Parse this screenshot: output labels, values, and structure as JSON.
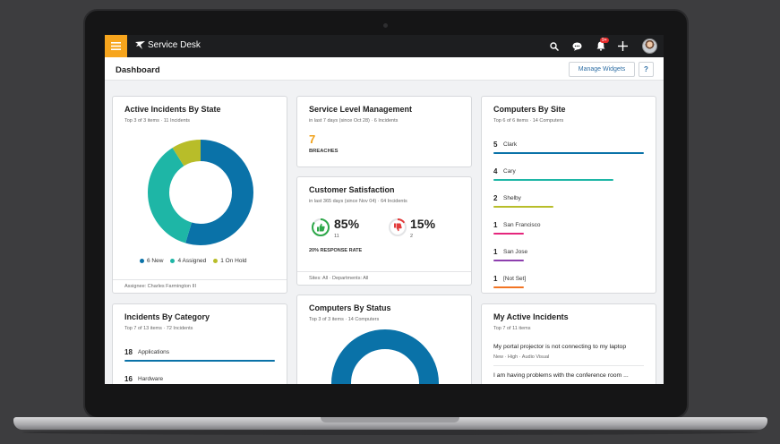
{
  "app": {
    "title": "Service Desk",
    "notification_count": "9+"
  },
  "icons": {
    "menu": "hamburger-icon",
    "logo": "bird-icon",
    "search": "search-icon",
    "chat": "chat-bubble-icon",
    "bell": "bell-icon",
    "add": "plus-icon",
    "thumbs_up": "thumbs-up-icon",
    "thumbs_down": "thumbs-down-icon"
  },
  "colors": {
    "accent": "#f7a51d",
    "topbar": "#1d1e20",
    "blue": "#0a72a8",
    "teal": "#1eb6a6",
    "olive": "#b8bd29",
    "magenta": "#e5267d",
    "purple": "#8d3fae",
    "orange": "#f27423",
    "breach": "#f0a017"
  },
  "header": {
    "title": "Dashboard",
    "manage_widgets": "Manage Widgets",
    "help": "?"
  },
  "active_incidents_by_state": {
    "title": "Active Incidents By State",
    "subtitle": "Top 3 of 3 items  ·  11 Incidents",
    "legend": [
      "6 New",
      "4 Assigned",
      "1 On Hold"
    ],
    "footer": "Assignee: Charles Farmington III"
  },
  "chart_data": {
    "type": "pie",
    "categories": [
      "New",
      "Assigned",
      "On Hold"
    ],
    "values": [
      6,
      4,
      1
    ],
    "colors": [
      "#0a72a8",
      "#1eb6a6",
      "#b8bd29"
    ],
    "title": "Active Incidents By State"
  },
  "service_level": {
    "title": "Service Level Management",
    "subtitle": "in last 7 days (since Oct 28)  ·  6 Incidents",
    "breaches_value": "7",
    "breaches_label": "BREACHES"
  },
  "customer_satisfaction": {
    "title": "Customer Satisfaction",
    "subtitle": "in last 365 days (since Nov 04)  ·  64 Incidents",
    "positive_pct": "85%",
    "positive_count": "11",
    "positive_fraction": 0.85,
    "negative_pct": "15%",
    "negative_count": "2",
    "negative_fraction": 0.15,
    "response_rate": "20% RESPONSE RATE",
    "footer": "Sites: All  ·  Departments: All"
  },
  "computers_by_site": {
    "title": "Computers By Site",
    "subtitle": "Top 6 of 6 items  ·  14 Computers",
    "items": [
      {
        "count": "5",
        "name": "Clark",
        "color": "#0a72a8",
        "fraction": 1.0
      },
      {
        "count": "4",
        "name": "Cary",
        "color": "#1eb6a6",
        "fraction": 0.8
      },
      {
        "count": "2",
        "name": "Shelby",
        "color": "#b8bd29",
        "fraction": 0.4
      },
      {
        "count": "1",
        "name": "San Francisco",
        "color": "#e5267d",
        "fraction": 0.2
      },
      {
        "count": "1",
        "name": "San Jose",
        "color": "#8d3fae",
        "fraction": 0.2
      },
      {
        "count": "1",
        "name": "[Not Set]",
        "color": "#f27423",
        "fraction": 0.2
      }
    ]
  },
  "incidents_by_category": {
    "title": "Incidents By Category",
    "subtitle": "Top 7 of 13 items  ·  72 Incidents",
    "items": [
      {
        "count": "18",
        "name": "Applications",
        "fraction": 1.0
      },
      {
        "count": "16",
        "name": "Hardware"
      }
    ]
  },
  "computers_by_status": {
    "title": "Computers By Status",
    "subtitle": "Top 3 of 3 items  ·  14 Computers"
  },
  "my_active_incidents": {
    "title": "My Active Incidents",
    "subtitle": "Top 7 of 11 items",
    "items": [
      {
        "title": "My portal projector is not connecting to my laptop",
        "meta": "New  ·  High  ·  Audio Visual"
      },
      {
        "title": "I am having problems with the conference room ..."
      }
    ]
  }
}
